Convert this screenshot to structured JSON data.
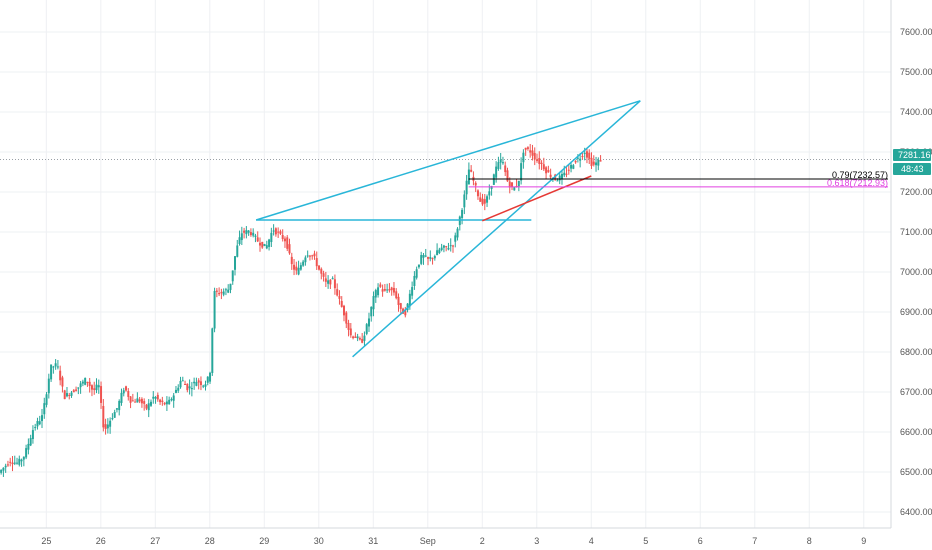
{
  "chart_data": {
    "type": "candlestick",
    "title": "",
    "xlabel": "",
    "ylabel": "",
    "ylim": [
      6360,
      7680
    ],
    "y_ticks": [
      6400,
      6500,
      6600,
      6700,
      6800,
      6900,
      7000,
      7100,
      7200,
      7300,
      7400,
      7500,
      7600
    ],
    "y_tick_labels": [
      "6400.00",
      "6500.00",
      "6600.00",
      "6700.00",
      "6800.00",
      "6900.00",
      "7000.00",
      "7100.00",
      "7200.00",
      "7300.00",
      "7400.00",
      "7500.00",
      "7600.00"
    ],
    "x_ticks": [
      25,
      26,
      27,
      28,
      29,
      30,
      31,
      32,
      33,
      34,
      35,
      36,
      37,
      38,
      39,
      40
    ],
    "x_tick_labels": [
      "25",
      "26",
      "27",
      "28",
      "29",
      "30",
      "31",
      "Sep",
      "2",
      "3",
      "4",
      "5",
      "6",
      "7",
      "8",
      "9"
    ],
    "xlim": [
      24.15,
      40.5
    ],
    "grid": true,
    "current_price": 7281.16,
    "current_price_label": "7281.16",
    "countdown_label": "48:43",
    "price_series": [
      [
        24.15,
        6498
      ],
      [
        24.35,
        6528
      ],
      [
        24.5,
        6522
      ],
      [
        24.62,
        6542
      ],
      [
        24.78,
        6608
      ],
      [
        24.95,
        6640
      ],
      [
        25.1,
        6762
      ],
      [
        25.22,
        6768
      ],
      [
        25.35,
        6688
      ],
      [
        25.5,
        6702
      ],
      [
        25.62,
        6714
      ],
      [
        25.75,
        6732
      ],
      [
        25.88,
        6702
      ],
      [
        25.98,
        6718
      ],
      [
        26.08,
        6602
      ],
      [
        26.2,
        6632
      ],
      [
        26.32,
        6660
      ],
      [
        26.45,
        6712
      ],
      [
        26.58,
        6676
      ],
      [
        26.72,
        6682
      ],
      [
        26.85,
        6658
      ],
      [
        27,
        6690
      ],
      [
        27.12,
        6672
      ],
      [
        27.25,
        6670
      ],
      [
        27.38,
        6698
      ],
      [
        27.5,
        6732
      ],
      [
        27.62,
        6708
      ],
      [
        27.78,
        6728
      ],
      [
        27.92,
        6718
      ],
      [
        28.02,
        6740
      ],
      [
        28.1,
        6948
      ],
      [
        28.22,
        6948
      ],
      [
        28.38,
        6958
      ],
      [
        28.5,
        7052
      ],
      [
        28.6,
        7098
      ],
      [
        28.75,
        7102
      ],
      [
        28.9,
        7078
      ],
      [
        29.05,
        7060
      ],
      [
        29.18,
        7108
      ],
      [
        29.3,
        7092
      ],
      [
        29.42,
        7078
      ],
      [
        29.52,
        7018
      ],
      [
        29.62,
        6998
      ],
      [
        29.8,
        7048
      ],
      [
        29.92,
        7040
      ],
      [
        30.05,
        6998
      ],
      [
        30.15,
        6972
      ],
      [
        30.28,
        6978
      ],
      [
        30.4,
        6928
      ],
      [
        30.5,
        6890
      ],
      [
        30.6,
        6842
      ],
      [
        30.7,
        6838
      ],
      [
        30.8,
        6822
      ],
      [
        30.92,
        6872
      ],
      [
        31.02,
        6932
      ],
      [
        31.12,
        6968
      ],
      [
        31.22,
        6948
      ],
      [
        31.3,
        6960
      ],
      [
        31.42,
        6948
      ],
      [
        31.52,
        6902
      ],
      [
        31.62,
        6898
      ],
      [
        31.72,
        6962
      ],
      [
        31.82,
        7012
      ],
      [
        31.92,
        7042
      ],
      [
        32.02,
        7030
      ],
      [
        32.15,
        7042
      ],
      [
        32.25,
        7058
      ],
      [
        32.38,
        7062
      ],
      [
        32.5,
        7072
      ],
      [
        32.58,
        7120
      ],
      [
        32.68,
        7180
      ],
      [
        32.78,
        7260
      ],
      [
        32.88,
        7218
      ],
      [
        32.98,
        7178
      ],
      [
        33.08,
        7172
      ],
      [
        33.18,
        7216
      ],
      [
        33.28,
        7262
      ],
      [
        33.38,
        7282
      ],
      [
        33.48,
        7228
      ],
      [
        33.58,
        7206
      ],
      [
        33.68,
        7222
      ],
      [
        33.78,
        7308
      ],
      [
        33.9,
        7302
      ],
      [
        34.02,
        7280
      ],
      [
        34.12,
        7268
      ],
      [
        34.22,
        7248
      ],
      [
        34.3,
        7238
      ],
      [
        34.38,
        7232
      ],
      [
        34.5,
        7240
      ],
      [
        34.6,
        7254
      ],
      [
        34.72,
        7278
      ],
      [
        34.82,
        7288
      ],
      [
        34.9,
        7302
      ],
      [
        34.98,
        7282
      ],
      [
        35.05,
        7266
      ],
      [
        35.15,
        7276
      ],
      [
        35.22,
        7284
      ]
    ],
    "drawings": [
      {
        "type": "trendline",
        "color": "#29b6d8",
        "points": [
          [
            28.85,
            7130
          ],
          [
            35.9,
            7428
          ]
        ]
      },
      {
        "type": "trendline",
        "color": "#29b6d8",
        "points": [
          [
            28.85,
            7130
          ],
          [
            33.9,
            7130
          ]
        ]
      },
      {
        "type": "trendline",
        "color": "#29b6d8",
        "points": [
          [
            30.62,
            6788
          ],
          [
            35.9,
            7428
          ]
        ]
      },
      {
        "type": "trendline",
        "color": "#e53935",
        "points": [
          [
            33.0,
            7128
          ],
          [
            35.0,
            7240
          ]
        ]
      }
    ],
    "fib_levels": [
      {
        "label": "0.79(7232.57)",
        "value": 7232.57,
        "x_start": 32.75,
        "color": "#000000"
      },
      {
        "label": "0.618(7212.93)",
        "value": 7212.93,
        "x_start": 32.75,
        "color": "#e040e0"
      }
    ]
  },
  "colors": {
    "up": "#26a69a",
    "down": "#ef5350",
    "grid": "#eef0f3",
    "axis_text": "#555555",
    "price_badge": "#26a69a",
    "countdown_badge": "#26a69a",
    "price_line": "#9aa0a6"
  }
}
